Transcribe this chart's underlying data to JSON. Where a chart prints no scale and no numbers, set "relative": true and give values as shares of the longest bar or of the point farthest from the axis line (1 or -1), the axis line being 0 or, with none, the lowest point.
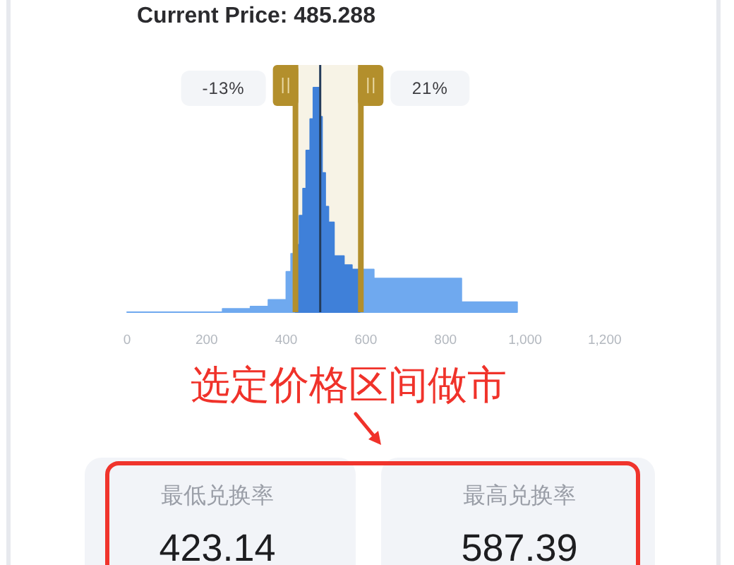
{
  "chart_data": {
    "type": "area",
    "title": "Current Price: 485.288",
    "relative": true,
    "tick_labels": "x",
    "series": [
      {
        "color": "#6fa9ef",
        "x": [
          0,
          240,
          240,
          310,
          310,
          355,
          355,
          400,
          400,
          412,
          412,
          423.14
        ],
        "values": [
          0,
          0,
          0.015,
          0.015,
          0.025,
          0.025,
          0.055,
          0.055,
          0.18,
          0.18,
          0.26,
          0.26
        ]
      },
      {
        "color": "#3f80d9",
        "x": [
          423.14,
          433,
          433,
          442,
          442,
          450,
          450,
          460,
          460,
          468,
          468,
          482,
          482,
          490,
          490,
          498,
          498,
          506,
          506,
          520,
          520,
          545,
          545,
          565,
          565,
          587.39
        ],
        "values": [
          0.3,
          0.3,
          0.43,
          0.43,
          0.55,
          0.55,
          0.72,
          0.72,
          0.86,
          0.86,
          1,
          1,
          0.87,
          0.87,
          0.62,
          0.62,
          0.47,
          0.47,
          0.4,
          0.4,
          0.25,
          0.25,
          0.21,
          0.21,
          0.19,
          0.19
        ]
      },
      {
        "color": "#6fa9ef",
        "x": [
          587.39,
          620,
          620,
          840,
          840,
          980
        ],
        "values": [
          0.19,
          0.19,
          0.15,
          0.15,
          0.045,
          0.045
        ]
      }
    ],
    "xlim": [
      0,
      1200
    ],
    "xticks": [
      0,
      200,
      400,
      600,
      800,
      {
        "value": 1000,
        "label": "1,000"
      },
      {
        "value": 1200,
        "label": "1,200"
      }
    ],
    "bands": [
      {
        "axis": "x",
        "from": 423.14,
        "to": 587.39,
        "color": "#f7f3e6"
      }
    ],
    "ref_lines": [
      {
        "axis": "x",
        "value": 485.288,
        "color": "#243b5a"
      },
      {
        "axis": "x",
        "value": 423.14,
        "color": "#b38f2c"
      },
      {
        "axis": "x",
        "value": 587.39,
        "color": "#b38f2c"
      }
    ],
    "annotations": [
      "-13%",
      "21%",
      "选定价格区间做市",
      "最低兑换率",
      "423.14",
      "最高兑换率",
      "587.39"
    ]
  }
}
